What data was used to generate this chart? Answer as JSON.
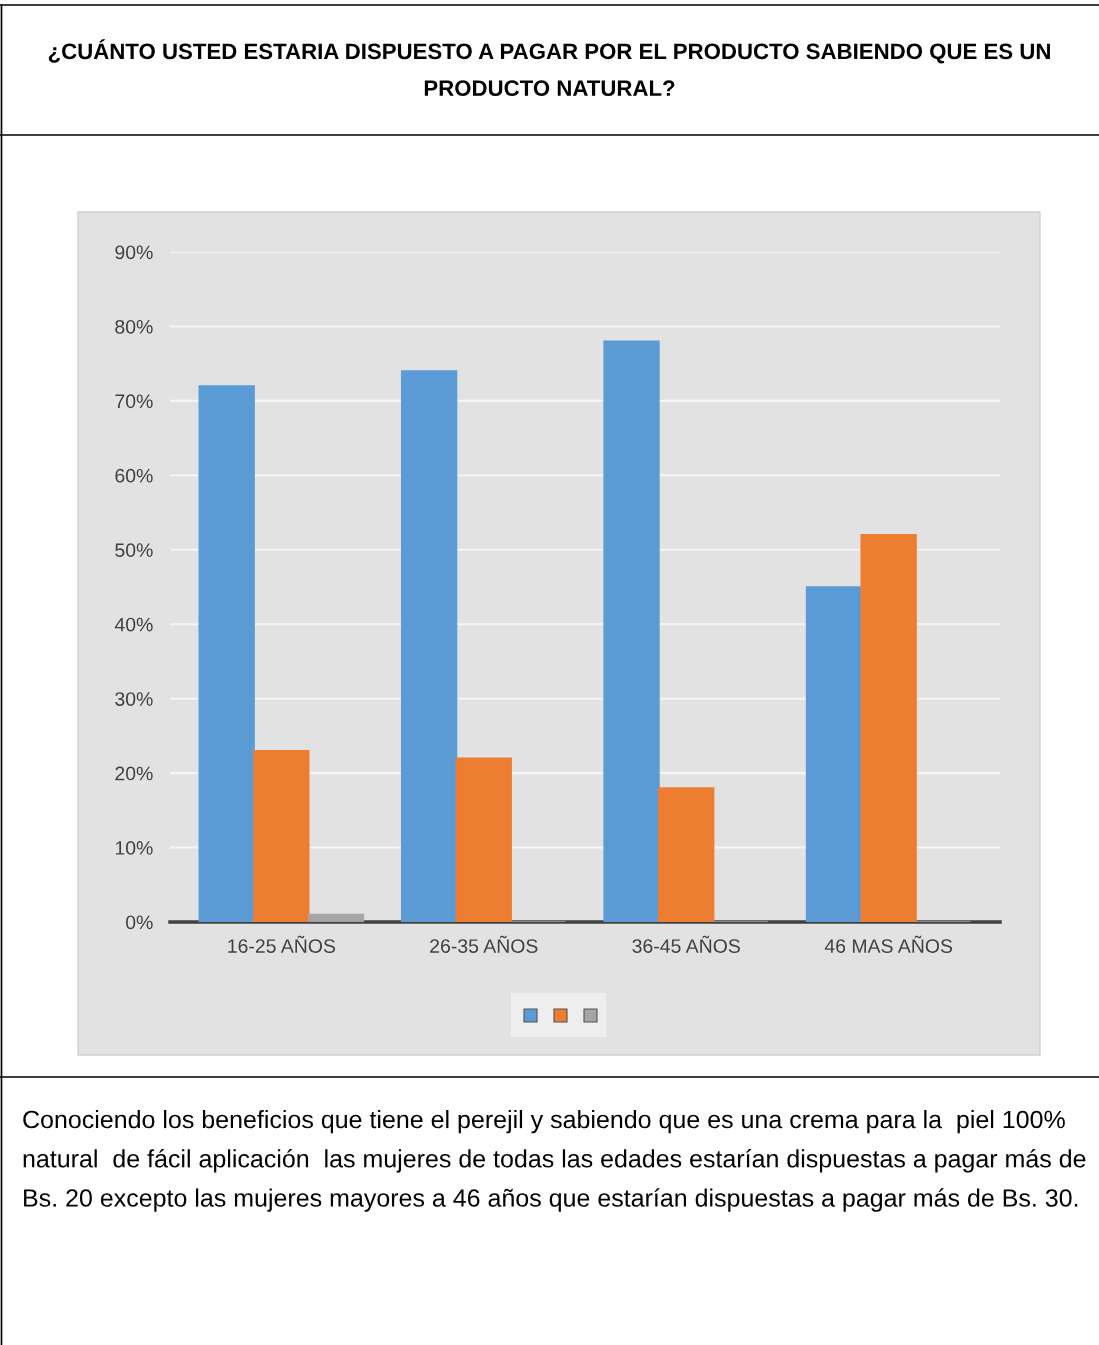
{
  "chart_data": {
    "type": "bar",
    "title": "¿CUÁNTO USTED ESTARIA DISPUESTO A PAGAR POR EL PRODUCTO SABIENDO QUE ES UN PRODUCTO NATURAL?",
    "categories": [
      "16-25 AÑOS",
      "26-35 AÑOS",
      "36-45 AÑOS",
      "46 MAS AÑOS"
    ],
    "series": [
      {
        "color": "#5b9bd5",
        "values": [
          72,
          74,
          78,
          45
        ]
      },
      {
        "color": "#ed7d31",
        "values": [
          23,
          22,
          18,
          52
        ]
      },
      {
        "color": "#a5a5a5",
        "values": [
          1,
          0,
          0,
          0
        ]
      }
    ],
    "ylim": [
      0,
      90
    ],
    "yticks": [
      {
        "value": 0,
        "label": "0%"
      },
      {
        "value": 10,
        "label": "10%"
      },
      {
        "value": 20,
        "label": "20%"
      },
      {
        "value": 30,
        "label": "30%"
      },
      {
        "value": 40,
        "label": "40%"
      },
      {
        "value": 50,
        "label": "50%"
      },
      {
        "value": 60,
        "label": "60%"
      },
      {
        "value": 70,
        "label": "70%"
      },
      {
        "value": 80,
        "label": "80%"
      },
      {
        "value": 90,
        "label": "90%"
      }
    ],
    "grid": "y",
    "annotations": [
      "Conociendo los beneficios que tiene el perejil y sabiendo que es una crema para la  piel 100% natural  de fácil aplicación  las mujeres de todas las edades estarían dispuestas a pagar más de Bs. 20 excepto las mujeres mayores a 46 años que estarían dispuestas a pagar más de Bs. 30."
    ]
  }
}
